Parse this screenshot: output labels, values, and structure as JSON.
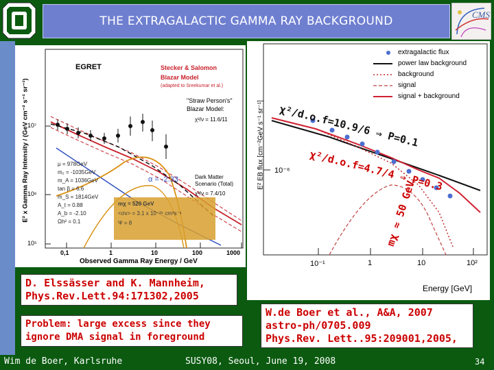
{
  "slide": {
    "title": "THE EXTRAGALACTIC GAMMA RAY BACKGROUND",
    "page_number": "34",
    "colors": {
      "background": "#0b5a10",
      "title_bar": "#6f7fd0",
      "annotation_red": "#cc0000"
    }
  },
  "left_plot": {
    "ylabel": "E² x Gamma Ray Intensity  /  (GeV cm⁻² s⁻¹ sr⁻¹)",
    "xlabel": "Observed Gamma Ray Energy / GeV",
    "dataset_label": "EGRET",
    "xticks": [
      "0,1",
      "1",
      "10",
      "100",
      "1000"
    ],
    "yticks": [
      "10⁵",
      "10⁶",
      "10⁷"
    ],
    "legend": [
      "Stecker & Salomon",
      "Blazar Model",
      "(adapted to Sreekumar et al.)"
    ],
    "straw_model": [
      "\"Straw Person's\"",
      "Blazar Model:"
    ],
    "chi_upper": "χ²/ν = 11.6/11",
    "params": [
      "μ = 978GeV",
      "m₂ = -1035GeV",
      "m_A = 1036GeV",
      "tan β = 6.6",
      "m_S = 1814GeV",
      "A_t = 0.88",
      "A_b = -2.10",
      "Ωh² = 0.1"
    ],
    "alpha_label": "α = -2.33",
    "dm_label": [
      "Dark Matter",
      "Scenario (Total)"
    ],
    "chi_lower": "χ²/ν = 7.4/10",
    "mass_box": [
      "mχ = 520 GeV",
      "<σv> = 3.1 x 10⁻²⁶ cm³s⁻¹",
      "Ψ = 8"
    ]
  },
  "right_plot": {
    "ylabel": "E² EB flux [cm⁻²GeV s⁻¹ sr⁻¹]",
    "xlabel": "Energy [GeV]",
    "ytick": "10⁻⁶",
    "xticks": [
      "10⁻¹",
      "1",
      "10",
      "10²"
    ],
    "legend": [
      "extragalactic flux",
      "power law background",
      "background",
      "signal",
      "signal + background"
    ]
  },
  "annotations": {
    "chi_upper": "χ²/d.o.f=10.9/6 ⇒ P=0.1",
    "chi_lower": "χ²/d.o.f=4.7/4 ⇒ P=0.3",
    "mass": "mχ ≈ 50 GeV"
  },
  "references": {
    "left": "D. Elssässer and K. Mannheim, Phys.Rev.Lett.94:171302,2005",
    "left_lines": [
      "D. Elssässer and K. Mannheim,",
      "Phys.Rev.Lett.94:171302,2005"
    ],
    "problem_lines": [
      "Problem: large excess since they",
      "ignore DMA signal in foreground"
    ],
    "right_lines": [
      "W.de Boer et al., A&A, 2007",
      "astro-ph/0705.009",
      "Phys.Rev. Lett..95:209001,2005,"
    ]
  },
  "footer": {
    "author": "Wim de Boer, Karlsruhe",
    "event": "SUSY08, Seoul, June 19, 2008"
  }
}
